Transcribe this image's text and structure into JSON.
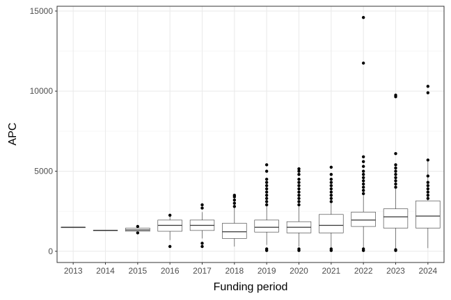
{
  "chart_data": {
    "type": "box",
    "title": "",
    "xlabel": "Funding period",
    "ylabel": "APC",
    "ylim": [
      -700,
      15300
    ],
    "yticks": [
      0,
      5000,
      10000,
      15000
    ],
    "ytick_labels": [
      "0",
      "5000",
      "10000",
      "15000"
    ],
    "grid": true,
    "legend": "none",
    "categories": [
      "2013",
      "2014",
      "2015",
      "2016",
      "2017",
      "2018",
      "2019",
      "2020",
      "2021",
      "2022",
      "2023",
      "2024"
    ],
    "boxes": [
      {
        "category": "2013",
        "min": 1500,
        "q1": 1500,
        "median": 1500,
        "q3": 1510,
        "max": 1510,
        "outliers": []
      },
      {
        "category": "2014",
        "min": 1310,
        "q1": 1310,
        "median": 1310,
        "q3": 1320,
        "max": 1320,
        "outliers": []
      },
      {
        "category": "2015",
        "min": 1250,
        "q1": 1250,
        "median": 1330,
        "q3": 1450,
        "max": 1450,
        "outliers": [
          1150,
          1550
        ]
      },
      {
        "category": "2016",
        "min": 700,
        "q1": 1250,
        "median": 1620,
        "q3": 1950,
        "max": 2200,
        "outliers": [
          300,
          2250
        ]
      },
      {
        "category": "2017",
        "min": 800,
        "q1": 1300,
        "median": 1620,
        "q3": 1950,
        "max": 2450,
        "outliers": [
          300,
          500,
          2700,
          2900
        ]
      },
      {
        "category": "2018",
        "min": 300,
        "q1": 800,
        "median": 1220,
        "q3": 1750,
        "max": 2700,
        "outliers": [
          2800,
          3000,
          3200,
          3400,
          3500
        ]
      },
      {
        "category": "2019",
        "min": 400,
        "q1": 1200,
        "median": 1500,
        "q3": 1950,
        "max": 2800,
        "outliers": [
          50,
          150,
          2900,
          3100,
          3300,
          3500,
          3700,
          3900,
          4100,
          4300,
          4500,
          5000,
          5400
        ]
      },
      {
        "category": "2020",
        "min": 300,
        "q1": 1150,
        "median": 1500,
        "q3": 1850,
        "max": 2800,
        "outliers": [
          50,
          150,
          2900,
          3100,
          3300,
          3500,
          3700,
          3900,
          4100,
          4300,
          4500,
          4800,
          5000,
          5150
        ]
      },
      {
        "category": "2021",
        "min": 200,
        "q1": 1150,
        "median": 1620,
        "q3": 2300,
        "max": 3000,
        "outliers": [
          50,
          150,
          3100,
          3300,
          3500,
          3700,
          3900,
          4100,
          4300,
          4500,
          4800,
          5250
        ]
      },
      {
        "category": "2022",
        "min": 200,
        "q1": 1550,
        "median": 1950,
        "q3": 2450,
        "max": 3500,
        "outliers": [
          50,
          150,
          3600,
          3800,
          4000,
          4200,
          4400,
          4600,
          4800,
          5000,
          5300,
          5600,
          5900,
          11750,
          14600
        ]
      },
      {
        "category": "2023",
        "min": 200,
        "q1": 1450,
        "median": 2150,
        "q3": 2650,
        "max": 3900,
        "outliers": [
          50,
          100,
          4000,
          4200,
          4400,
          4600,
          4800,
          5000,
          5200,
          5400,
          6100,
          9650,
          9750
        ]
      },
      {
        "category": "2024",
        "min": 200,
        "q1": 1450,
        "median": 2200,
        "q3": 3150,
        "max": 5600,
        "outliers": [
          3300,
          3500,
          3700,
          3900,
          4100,
          4300,
          4700,
          5700,
          9900,
          10300
        ]
      }
    ]
  }
}
